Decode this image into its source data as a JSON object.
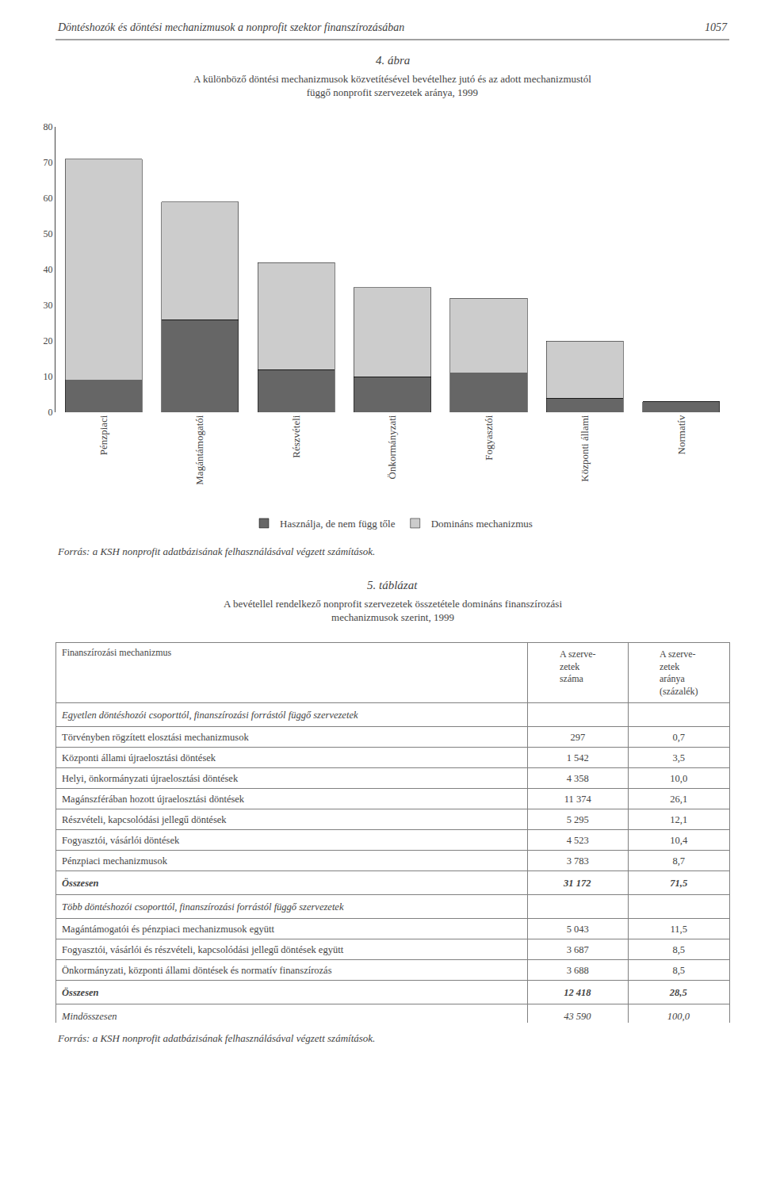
{
  "chart_data": [
    {
      "type": "bar",
      "annotations": [
        "Döntéshozók és döntési mechanizmusok a nonprofit szektor finanszírozásában",
        "1057"
      ],
      "title": "4. ábra",
      "subtitle": [
        "A különböző döntési mechanizmusok közvetítésével bevételhez jutó és az adott mechanizmustól",
        "függő nonprofit szervezetek aránya, 1999"
      ],
      "categories": [
        "Pénzpiaci",
        "Magántámogatói",
        "Részvételi",
        "Önkormányzati",
        "Fogyasztói",
        "Központi állami",
        "Normatív"
      ],
      "series": [
        {
          "name": "Használja, de nem függ tőle",
          "color": "#666666",
          "values": [
            9,
            26,
            12,
            10,
            11,
            4,
            3
          ]
        },
        {
          "name": "Domináns mechanizmus",
          "color": "#cccccc",
          "values": [
            62,
            33,
            30,
            25,
            21,
            16,
            0
          ]
        }
      ],
      "stacked": true,
      "ylim": [
        0,
        80
      ],
      "yticks": [
        0,
        10,
        20,
        30,
        40,
        50,
        60,
        70,
        80
      ],
      "grid": false,
      "legend": "bottom",
      "source": "Forrás: a KSH nonprofit adatbázisának felhasználásával végzett számítások."
    },
    {
      "type": "table",
      "title": "5. táblázat",
      "subtitle": [
        "A bevétellel rendelkező nonprofit szervezetek összetétele domináns finanszírozási",
        "mechanizmusok szerint, 1999"
      ],
      "columns": [
        "Finanszírozási mechanizmus",
        "A szerve-\nzetek\nszáma",
        "A szerve-\nzetek\naránya\n(százalék)"
      ],
      "sections": [
        {
          "name": "Egyetlen döntéshozói csoporttól, finanszírozási forrástól függő szervezetek",
          "rows": [
            [
              "Törvényben rögzített elosztási mechanizmusok",
              "297",
              "0,7"
            ],
            [
              "Központi állami újraelosztási döntések",
              "1 542",
              "3,5"
            ],
            [
              "Helyi, önkormányzati újraelosztási döntések",
              "4 358",
              "10,0"
            ],
            [
              "Magánszférában hozott újraelosztási döntések",
              "11 374",
              "26,1"
            ],
            [
              "Részvételi, kapcsolódási jellegű döntések",
              "5 295",
              "12,1"
            ],
            [
              "Fogyasztói, vásárlói döntések",
              "4 523",
              "10,4"
            ],
            [
              "Pénzpiaci mechanizmusok",
              "3 783",
              "8,7"
            ]
          ],
          "total": [
            "Összesen",
            "31 172",
            "71,5"
          ]
        },
        {
          "name": "Több döntéshozói csoporttól, finanszírozási forrástól függő szervezetek",
          "rows": [
            [
              "Magántámogatói és pénzpiaci mechanizmusok együtt",
              "5 043",
              "11,5"
            ],
            [
              "Fogyasztói, vásárlói és részvételi, kapcsolódási jellegű döntések együtt",
              "3 687",
              "8,5"
            ],
            [
              "Önkormányzati, központi állami döntések és normatív finanszírozás",
              "3 688",
              "8,5"
            ]
          ],
          "total": [
            "Összesen",
            "12 418",
            "28,5"
          ]
        }
      ],
      "total": [
        "Mindösszesen",
        "43 590",
        "100,0"
      ],
      "source": "Forrás: a KSH nonprofit adatbázisának felhasználásával végzett számítások."
    }
  ]
}
